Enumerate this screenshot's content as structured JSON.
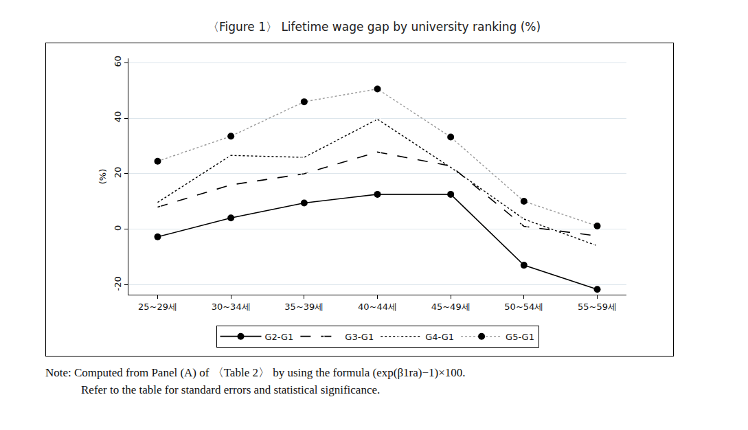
{
  "chart_data": {
    "type": "line",
    "title": "〈Figure 1〉 Lifetime wage gap by university ranking (%)",
    "y_label": "(%)",
    "annotations": [
      "Note: Computed from Panel (A) of 〈Table 2〉 by using the formula (exp(β1ra)−1)×100.",
      "Refer to the table for standard errors and statistical significance."
    ],
    "categories": [
      "25~29세",
      "30~34세",
      "35~39세",
      "40~44세",
      "45~49세",
      "50~54세",
      "55~59세"
    ],
    "series": [
      {
        "name": "G2-G1",
        "color": "#000000",
        "marker": "circle",
        "line_style": "solid",
        "values": [
          -2.7,
          4.1,
          9.5,
          12.6,
          12.6,
          -12.9,
          -21.6
        ]
      },
      {
        "name": "G3-G1",
        "color": "#000000",
        "marker": "circle-open",
        "line_style": "longdash",
        "values": [
          8.0,
          16.0,
          20.0,
          27.8,
          22.8,
          1.1,
          -2.4
        ]
      },
      {
        "name": "G4-G1",
        "color": "#000000",
        "marker": "circle-open",
        "line_style": "dot",
        "values": [
          9.7,
          26.6,
          25.9,
          39.6,
          22.3,
          3.7,
          -5.9
        ]
      },
      {
        "name": "G5-G1",
        "color": "#999999",
        "marker": "circle",
        "line_style": "dot",
        "values": [
          24.5,
          33.5,
          45.9,
          50.5,
          33.2,
          10.1,
          1.2
        ]
      }
    ],
    "ylim": [
      -23.5,
      61.5
    ],
    "yticks": [
      -20,
      0,
      20,
      40,
      60
    ],
    "grid": true,
    "legend": "bottom"
  }
}
